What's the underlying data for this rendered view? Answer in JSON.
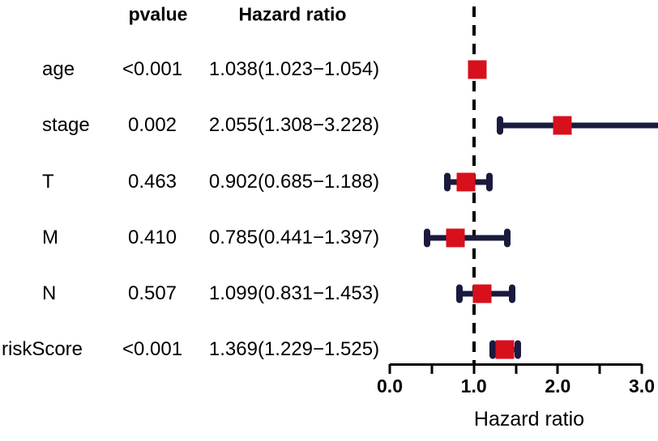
{
  "chart_data": {
    "type": "forest",
    "columns": {
      "pvalue": "pvalue",
      "hazard_ratio": "Hazard ratio"
    },
    "rows": [
      {
        "label": "age",
        "pvalue": "<0.001",
        "hr_text": "1.038(1.023−1.054)",
        "hr": 1.038,
        "ci_low": 1.023,
        "ci_high": 1.054
      },
      {
        "label": "stage",
        "pvalue": "0.002",
        "hr_text": "2.055(1.308−3.228)",
        "hr": 2.055,
        "ci_low": 1.308,
        "ci_high": 3.228
      },
      {
        "label": "T",
        "pvalue": "0.463",
        "hr_text": "0.902(0.685−1.188)",
        "hr": 0.902,
        "ci_low": 0.685,
        "ci_high": 1.188
      },
      {
        "label": "M",
        "pvalue": "0.410",
        "hr_text": "0.785(0.441−1.397)",
        "hr": 0.785,
        "ci_low": 0.441,
        "ci_high": 1.397
      },
      {
        "label": "N",
        "pvalue": "0.507",
        "hr_text": "1.099(0.831−1.453)",
        "hr": 1.099,
        "ci_low": 0.831,
        "ci_high": 1.453
      },
      {
        "label": "riskScore",
        "pvalue": "<0.001",
        "hr_text": "1.369(1.229−1.525)",
        "hr": 1.369,
        "ci_low": 1.229,
        "ci_high": 1.525
      }
    ],
    "x_axis": {
      "min": 0.0,
      "max": 3.0,
      "ticks": [
        {
          "value": 0.0,
          "label": "0.0"
        },
        {
          "value": 0.5
        },
        {
          "value": 1.0,
          "label": "1.0"
        },
        {
          "value": 1.5
        },
        {
          "value": 2.0,
          "label": "2.0"
        },
        {
          "value": 2.5
        },
        {
          "value": 3.0,
          "label": "3.0"
        }
      ],
      "label": "Hazard ratio"
    },
    "reference_line_x": 1.0,
    "legend": null,
    "grid": false,
    "colors": {
      "marker": "#d8101c",
      "ci_bar": "#1a1a3e",
      "reference_line": "#000000",
      "axis": "#000000",
      "text": "#000000",
      "background": "#ffffff"
    }
  }
}
